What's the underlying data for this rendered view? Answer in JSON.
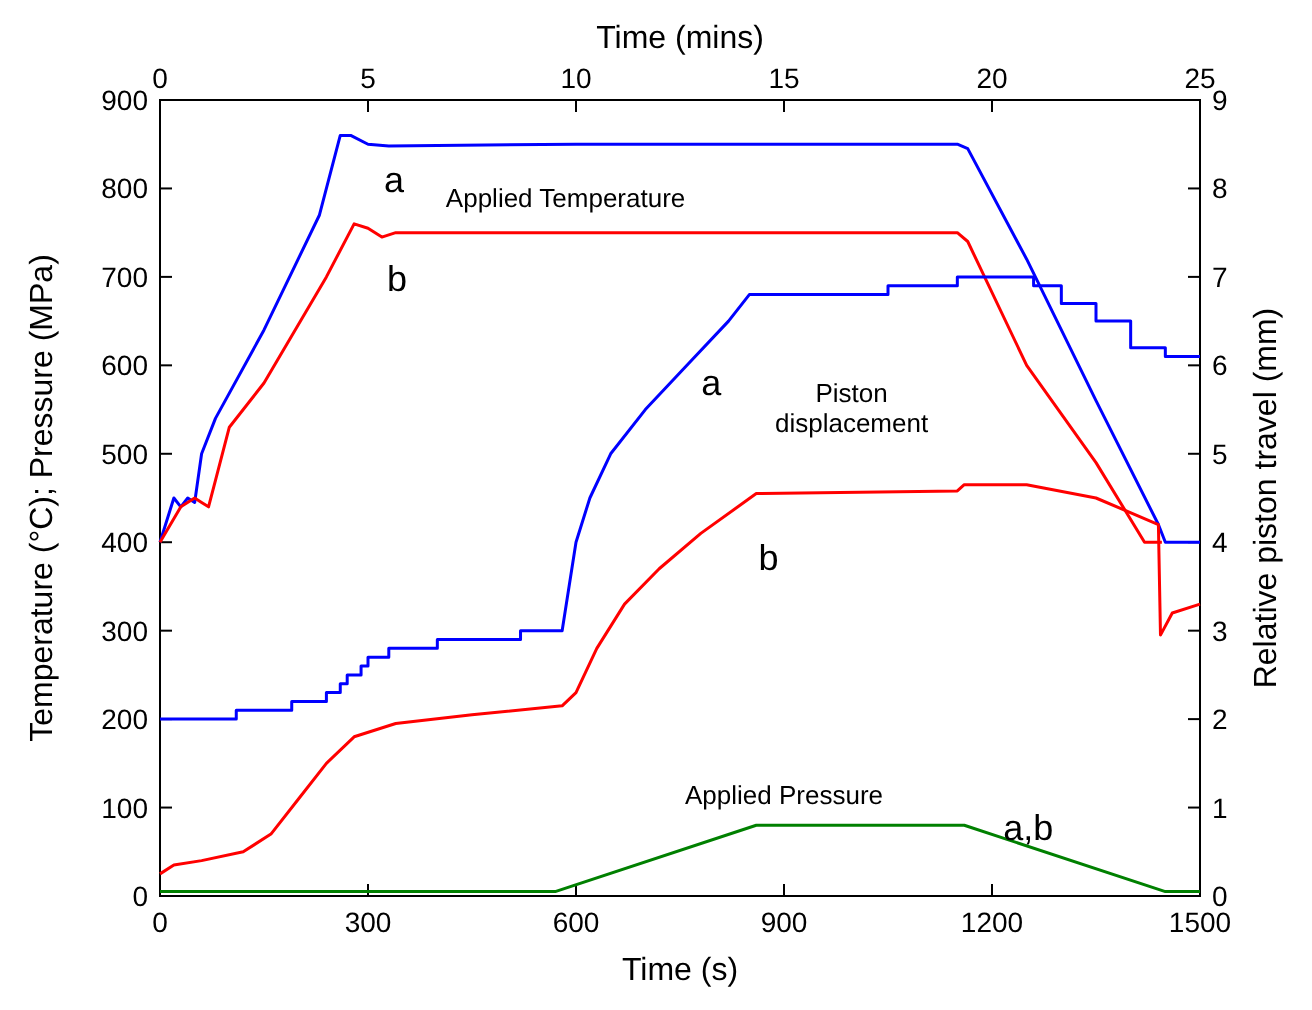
{
  "chart_data": {
    "type": "line",
    "xlabel": "Time (s)",
    "x2label": "Time (mins)",
    "ylabel": "Temperature (°C); Pressure (MPa)",
    "y2label": "Relative piston travel (mm)",
    "xlim": [
      0,
      1500
    ],
    "xticks": [
      0,
      300,
      600,
      900,
      1200,
      1500
    ],
    "x2lim": [
      0,
      25
    ],
    "x2ticks": [
      0,
      5,
      10,
      15,
      20,
      25
    ],
    "ylim": [
      0,
      900
    ],
    "yticks": [
      0,
      100,
      200,
      300,
      400,
      500,
      600,
      700,
      800,
      900
    ],
    "y2lim": [
      0,
      9
    ],
    "y2ticks": [
      0,
      1,
      2,
      3,
      4,
      5,
      6,
      7,
      8,
      9
    ],
    "series": [
      {
        "color": "#0000ff",
        "x": [
          0,
          20,
          30,
          40,
          50,
          60,
          80,
          150,
          230,
          260,
          275,
          300,
          330,
          600,
          1150,
          1165,
          1250,
          1350,
          1440,
          1450,
          1500
        ],
        "values": [
          400,
          450,
          440,
          450,
          445,
          500,
          540,
          640,
          770,
          860,
          860,
          850,
          848,
          850,
          850,
          845,
          720,
          560,
          420,
          400,
          400
        ]
      },
      {
        "color": "#ff0000",
        "x": [
          0,
          30,
          50,
          60,
          70,
          80,
          100,
          150,
          240,
          280,
          300,
          320,
          340,
          600,
          1150,
          1165,
          1250,
          1350,
          1420,
          1445
        ],
        "values": [
          400,
          440,
          450,
          445,
          440,
          470,
          530,
          580,
          700,
          760,
          755,
          745,
          750,
          750,
          750,
          740,
          600,
          490,
          400,
          400
        ]
      },
      {
        "color": "#0000ff",
        "axis": "y2",
        "x": [
          0,
          110,
          110,
          190,
          190,
          240,
          240,
          260,
          260,
          270,
          270,
          290,
          290,
          300,
          300,
          330,
          330,
          400,
          400,
          520,
          520,
          580,
          590,
          600,
          620,
          650,
          700,
          760,
          820,
          850,
          1050,
          1050,
          1150,
          1150,
          1260,
          1260,
          1300,
          1300,
          1350,
          1350,
          1400,
          1400,
          1450,
          1450,
          1470,
          1470,
          1500
        ],
        "values": [
          2.0,
          2.0,
          2.1,
          2.1,
          2.2,
          2.2,
          2.3,
          2.3,
          2.4,
          2.4,
          2.5,
          2.5,
          2.6,
          2.6,
          2.7,
          2.7,
          2.8,
          2.8,
          2.9,
          2.9,
          3.0,
          3.0,
          3.5,
          4.0,
          4.5,
          5.0,
          5.5,
          6.0,
          6.5,
          6.8,
          6.8,
          6.9,
          6.9,
          7.0,
          7.0,
          6.9,
          6.9,
          6.7,
          6.7,
          6.5,
          6.5,
          6.2,
          6.2,
          6.1,
          6.1,
          6.1,
          6.1
        ]
      },
      {
        "color": "#ff0000",
        "axis": "y2",
        "x": [
          0,
          20,
          60,
          120,
          160,
          200,
          240,
          280,
          340,
          450,
          580,
          600,
          630,
          670,
          720,
          780,
          860,
          1150,
          1160,
          1250,
          1350,
          1440,
          1443,
          1460,
          1500
        ],
        "values": [
          0.25,
          0.35,
          0.4,
          0.5,
          0.7,
          1.1,
          1.5,
          1.8,
          1.95,
          2.05,
          2.15,
          2.3,
          2.8,
          3.3,
          3.7,
          4.1,
          4.55,
          4.58,
          4.65,
          4.65,
          4.5,
          4.2,
          2.95,
          3.2,
          3.3
        ]
      },
      {
        "color": "#008000",
        "x": [
          0,
          570,
          860,
          1160,
          1450,
          1500
        ],
        "values": [
          5,
          5,
          80,
          80,
          5,
          5
        ]
      }
    ],
    "annotations": [
      "a",
      "b",
      "Applied Temperature",
      "a",
      "Piston\ndisplacement",
      "b",
      "Applied Pressure",
      "a,b"
    ]
  }
}
